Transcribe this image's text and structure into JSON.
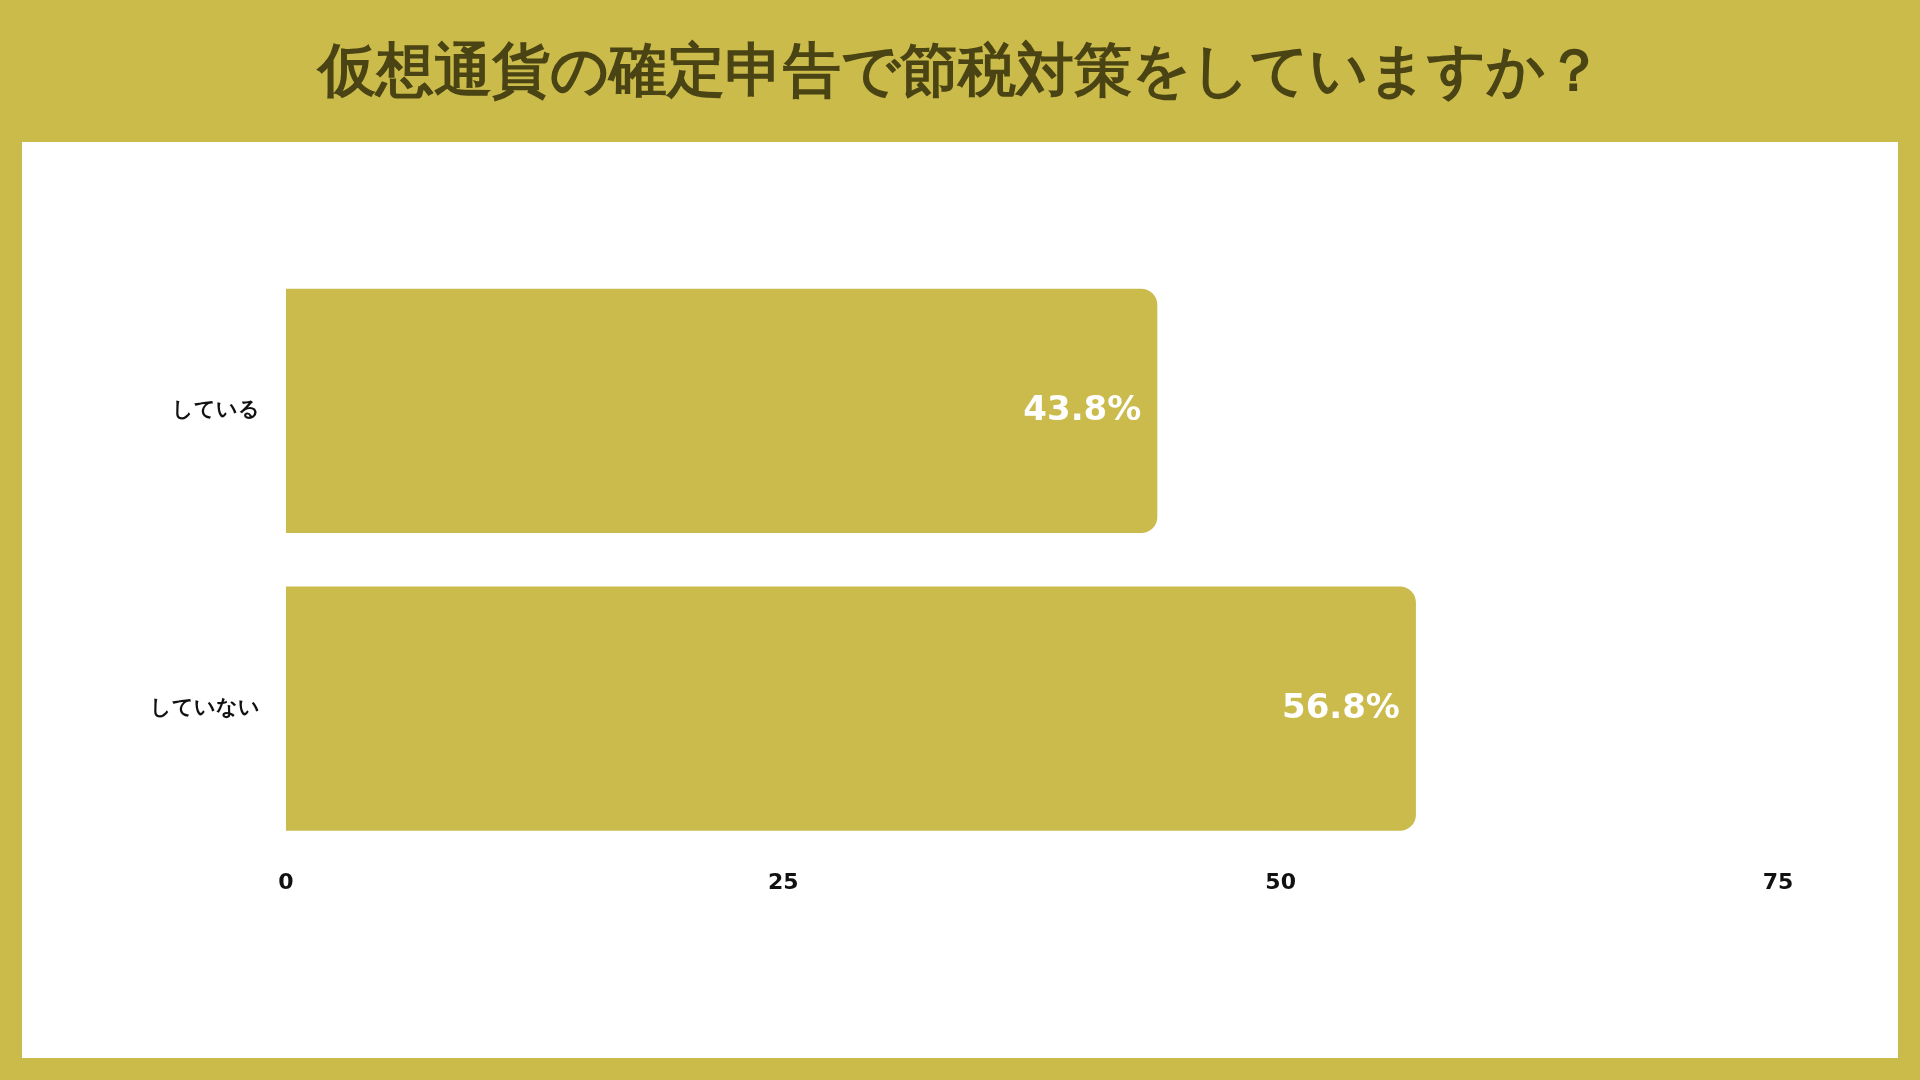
{
  "chart_data": {
    "type": "bar",
    "title": "仮想通貨の確定申告で節税対策をしていますか？",
    "orientation": "horizontal",
    "categories": [
      "している",
      "していない"
    ],
    "values": [
      43.8,
      56.8
    ],
    "value_labels": [
      "43.8%",
      "56.8%"
    ],
    "color": "#cbbb4c",
    "xlim": [
      0,
      75
    ],
    "xticks": [
      0,
      25,
      50,
      75
    ]
  }
}
